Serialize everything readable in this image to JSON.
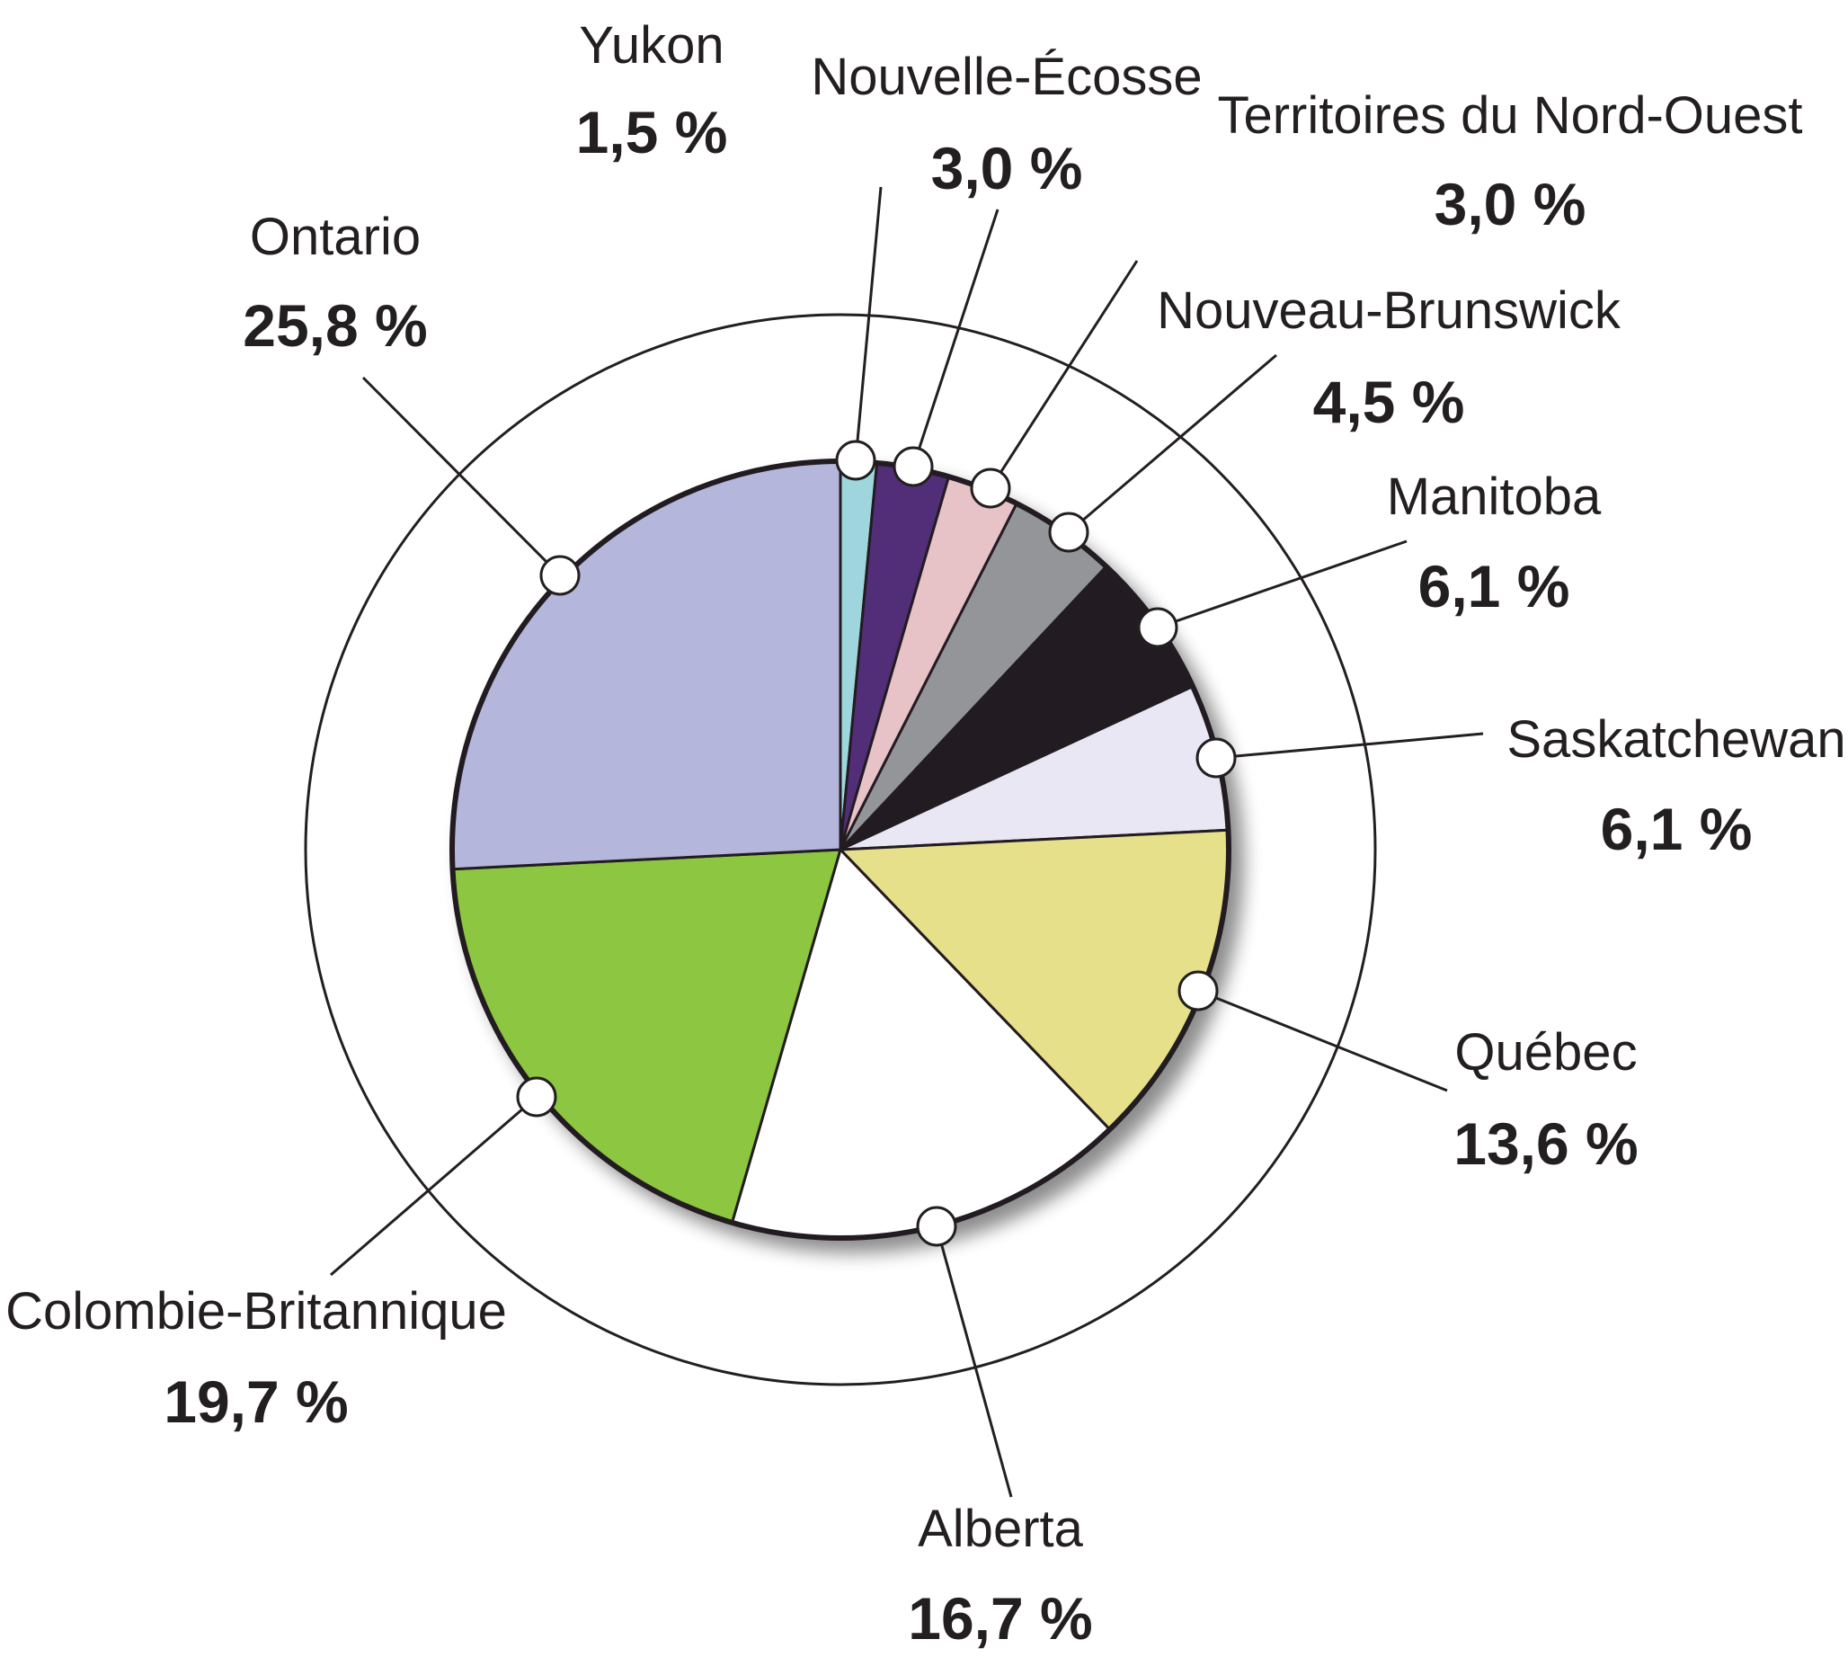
{
  "chart_data": {
    "type": "pie",
    "title": "",
    "start_angle_deg": 0,
    "direction": "clockwise",
    "slices": [
      {
        "label": "Yukon",
        "value": 1.5,
        "value_label": "1,5 %",
        "color": "#9fd6de"
      },
      {
        "label": "Nouvelle-Écosse",
        "value": 3.0,
        "value_label": "3,0 %",
        "color": "#532d78"
      },
      {
        "label": "Territoires du Nord-Ouest",
        "value": 3.0,
        "value_label": "3,0 %",
        "color": "#e7c2c7"
      },
      {
        "label": "Nouveau-Brunswick",
        "value": 4.5,
        "value_label": "4,5 %",
        "color": "#939598"
      },
      {
        "label": "Manitoba",
        "value": 6.1,
        "value_label": "6,1 %",
        "color": "#231f20"
      },
      {
        "label": "Saskatchewan",
        "value": 6.1,
        "value_label": "6,1 %",
        "color": "#e8e7f3"
      },
      {
        "label": "Québec",
        "value": 13.6,
        "value_label": "13,6 %",
        "color": "#e6e08a"
      },
      {
        "label": "Alberta",
        "value": 16.7,
        "value_label": "16,7 %",
        "color": "#ffffff"
      },
      {
        "label": "Colombie-Britannique",
        "value": 19.7,
        "value_label": "19,7 %",
        "color": "#8dc63f"
      },
      {
        "label": "Ontario",
        "value": 25.8,
        "value_label": "25,8 %",
        "color": "#b4b6dc"
      }
    ]
  }
}
